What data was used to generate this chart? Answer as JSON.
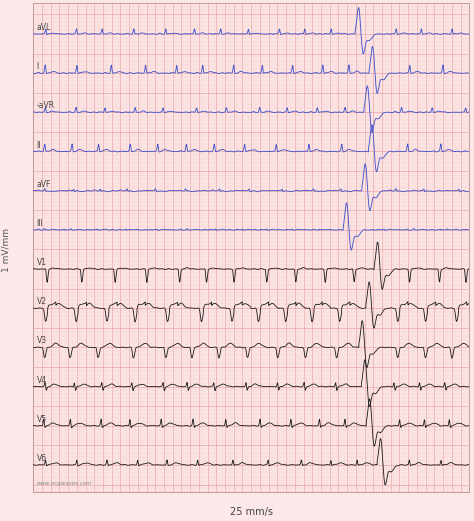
{
  "bg_color": "#fce8e8",
  "grid_major_color": "#e8a0a0",
  "grid_minor_color": "#f5c8c8",
  "limb_lead_color": "#4455cc",
  "chest_lead_color": "#1a1a1a",
  "lead_labels": [
    "aVL",
    "I",
    "-aVR",
    "II",
    "aVF",
    "III",
    "V1",
    "V2",
    "V3",
    "V4",
    "V5",
    "V6"
  ],
  "ylabel": "1 mV/mm",
  "xlabel": "25 mm/s",
  "watermark": "www.ecgwaves.com",
  "fig_width": 4.74,
  "fig_height": 5.21,
  "dpi": 100,
  "border_color": "#c09090"
}
